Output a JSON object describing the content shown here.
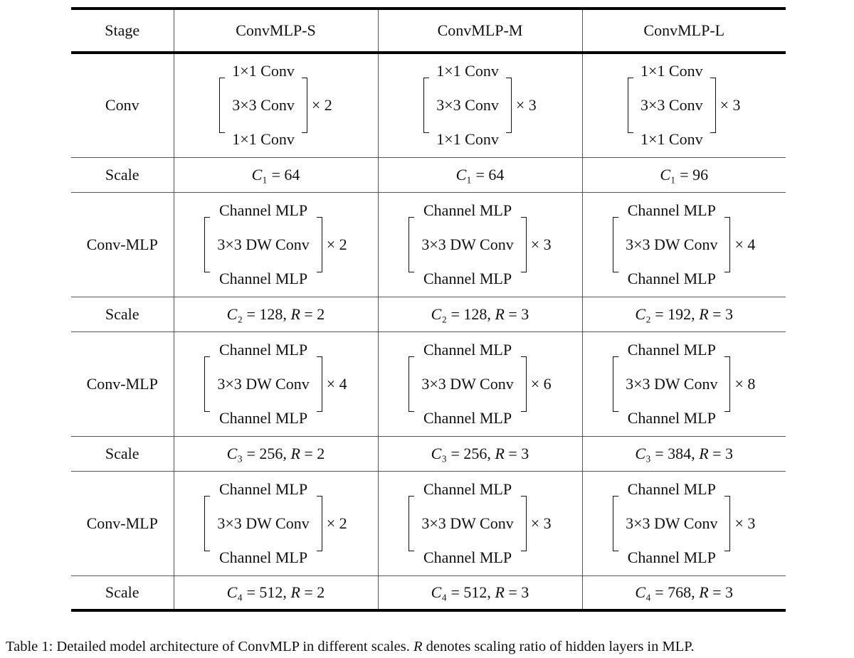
{
  "table": {
    "header": [
      "Stage",
      "ConvMLP-S",
      "ConvMLP-M",
      "ConvMLP-L"
    ],
    "rows": [
      {
        "stage": "Conv",
        "cells": [
          {
            "top": "1×1 Conv",
            "middle": "3×3 Conv",
            "bottom": "1×1 Conv",
            "repeat": "× 2"
          },
          {
            "top": "1×1 Conv",
            "middle": "3×3 Conv",
            "bottom": "1×1 Conv",
            "repeat": "× 3"
          },
          {
            "top": "1×1 Conv",
            "middle": "3×3 Conv",
            "bottom": "1×1 Conv",
            "repeat": "× 3"
          }
        ]
      },
      {
        "stage": "Scale",
        "cells": [
          "C₁ = 64",
          "C₁ = 64",
          "C₁ = 96"
        ]
      },
      {
        "stage": "Conv-MLP",
        "cells": [
          {
            "top": "Channel MLP",
            "middle": "3×3 DW Conv",
            "bottom": "Channel MLP",
            "repeat": "× 2"
          },
          {
            "top": "Channel MLP",
            "middle": "3×3 DW Conv",
            "bottom": "Channel MLP",
            "repeat": "× 3"
          },
          {
            "top": "Channel MLP",
            "middle": "3×3 DW Conv",
            "bottom": "Channel MLP",
            "repeat": "× 4"
          }
        ]
      },
      {
        "stage": "Scale",
        "cells": [
          "C₂ = 128, R = 2",
          "C₂ = 128, R = 3",
          "C₂ = 192, R = 3"
        ]
      },
      {
        "stage": "Conv-MLP",
        "cells": [
          {
            "top": "Channel MLP",
            "middle": "3×3 DW Conv",
            "bottom": "Channel MLP",
            "repeat": "× 4"
          },
          {
            "top": "Channel MLP",
            "middle": "3×3 DW Conv",
            "bottom": "Channel MLP",
            "repeat": "× 6"
          },
          {
            "top": "Channel MLP",
            "middle": "3×3 DW Conv",
            "bottom": "Channel MLP",
            "repeat": "× 8"
          }
        ]
      },
      {
        "stage": "Scale",
        "cells": [
          "C₃ = 256, R = 2",
          "C₃ = 256, R = 3",
          "C₃ = 384, R = 3"
        ]
      },
      {
        "stage": "Conv-MLP",
        "cells": [
          {
            "top": "Channel MLP",
            "middle": "3×3 DW Conv",
            "bottom": "Channel MLP",
            "repeat": "× 2"
          },
          {
            "top": "Channel MLP",
            "middle": "3×3 DW Conv",
            "bottom": "Channel MLP",
            "repeat": "× 3"
          },
          {
            "top": "Channel MLP",
            "middle": "3×3 DW Conv",
            "bottom": "Channel MLP",
            "repeat": "× 3"
          }
        ]
      },
      {
        "stage": "Scale",
        "cells": [
          "C₄ = 512, R = 2",
          "C₄ = 512, R = 3",
          "C₄ = 768, R = 3"
        ]
      }
    ]
  },
  "caption": [
    "Table 1: Detailed model architecture of ConvMLP in different scales. ",
    "R",
    " denotes scaling ratio of hidden layers in MLP."
  ]
}
